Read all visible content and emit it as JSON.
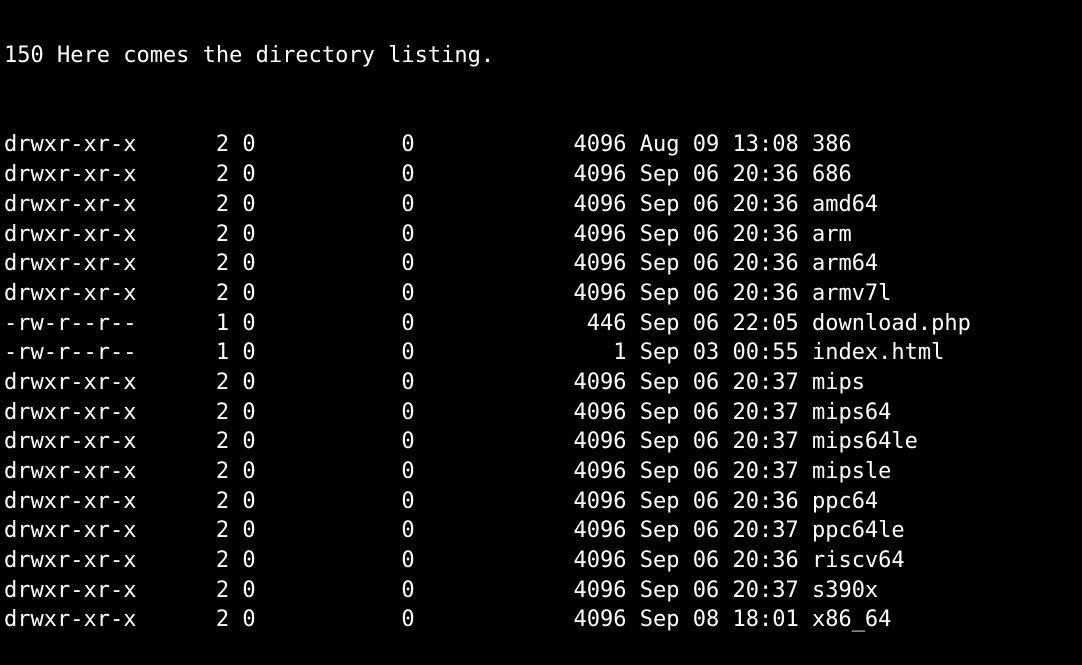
{
  "terminal": {
    "header": "150 Here comes the directory listing.",
    "columns": {
      "perm_width": 12,
      "links_width": 5,
      "owner_width": 2,
      "group_width": 11,
      "size_width": 16,
      "date_width": 13
    },
    "entries": [
      {
        "perm": "drwxr-xr-x",
        "links": "2",
        "owner": "0",
        "group": "0",
        "size": "4096",
        "month": "Aug",
        "day": "09",
        "time": "13:08",
        "name": "386"
      },
      {
        "perm": "drwxr-xr-x",
        "links": "2",
        "owner": "0",
        "group": "0",
        "size": "4096",
        "month": "Sep",
        "day": "06",
        "time": "20:36",
        "name": "686"
      },
      {
        "perm": "drwxr-xr-x",
        "links": "2",
        "owner": "0",
        "group": "0",
        "size": "4096",
        "month": "Sep",
        "day": "06",
        "time": "20:36",
        "name": "amd64"
      },
      {
        "perm": "drwxr-xr-x",
        "links": "2",
        "owner": "0",
        "group": "0",
        "size": "4096",
        "month": "Sep",
        "day": "06",
        "time": "20:36",
        "name": "arm"
      },
      {
        "perm": "drwxr-xr-x",
        "links": "2",
        "owner": "0",
        "group": "0",
        "size": "4096",
        "month": "Sep",
        "day": "06",
        "time": "20:36",
        "name": "arm64"
      },
      {
        "perm": "drwxr-xr-x",
        "links": "2",
        "owner": "0",
        "group": "0",
        "size": "4096",
        "month": "Sep",
        "day": "06",
        "time": "20:36",
        "name": "armv7l"
      },
      {
        "perm": "-rw-r--r--",
        "links": "1",
        "owner": "0",
        "group": "0",
        "size": "446",
        "month": "Sep",
        "day": "06",
        "time": "22:05",
        "name": "download.php"
      },
      {
        "perm": "-rw-r--r--",
        "links": "1",
        "owner": "0",
        "group": "0",
        "size": "1",
        "month": "Sep",
        "day": "03",
        "time": "00:55",
        "name": "index.html"
      },
      {
        "perm": "drwxr-xr-x",
        "links": "2",
        "owner": "0",
        "group": "0",
        "size": "4096",
        "month": "Sep",
        "day": "06",
        "time": "20:37",
        "name": "mips"
      },
      {
        "perm": "drwxr-xr-x",
        "links": "2",
        "owner": "0",
        "group": "0",
        "size": "4096",
        "month": "Sep",
        "day": "06",
        "time": "20:37",
        "name": "mips64"
      },
      {
        "perm": "drwxr-xr-x",
        "links": "2",
        "owner": "0",
        "group": "0",
        "size": "4096",
        "month": "Sep",
        "day": "06",
        "time": "20:37",
        "name": "mips64le"
      },
      {
        "perm": "drwxr-xr-x",
        "links": "2",
        "owner": "0",
        "group": "0",
        "size": "4096",
        "month": "Sep",
        "day": "06",
        "time": "20:37",
        "name": "mipsle"
      },
      {
        "perm": "drwxr-xr-x",
        "links": "2",
        "owner": "0",
        "group": "0",
        "size": "4096",
        "month": "Sep",
        "day": "06",
        "time": "20:36",
        "name": "ppc64"
      },
      {
        "perm": "drwxr-xr-x",
        "links": "2",
        "owner": "0",
        "group": "0",
        "size": "4096",
        "month": "Sep",
        "day": "06",
        "time": "20:37",
        "name": "ppc64le"
      },
      {
        "perm": "drwxr-xr-x",
        "links": "2",
        "owner": "0",
        "group": "0",
        "size": "4096",
        "month": "Sep",
        "day": "06",
        "time": "20:36",
        "name": "riscv64"
      },
      {
        "perm": "drwxr-xr-x",
        "links": "2",
        "owner": "0",
        "group": "0",
        "size": "4096",
        "month": "Sep",
        "day": "06",
        "time": "20:37",
        "name": "s390x"
      },
      {
        "perm": "drwxr-xr-x",
        "links": "2",
        "owner": "0",
        "group": "0",
        "size": "4096",
        "month": "Sep",
        "day": "08",
        "time": "18:01",
        "name": "x86_64"
      }
    ]
  }
}
